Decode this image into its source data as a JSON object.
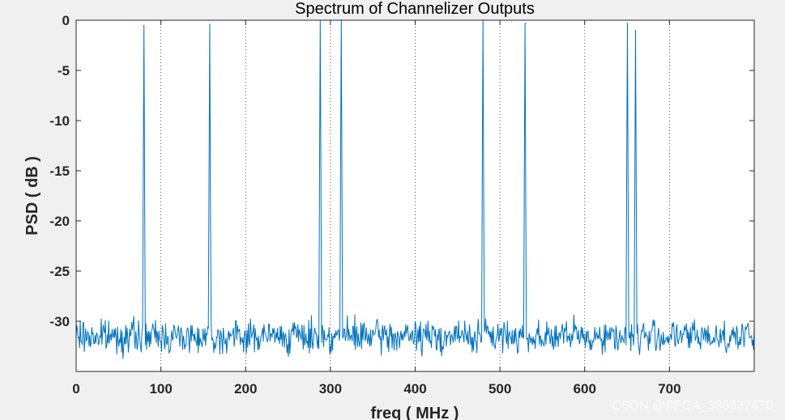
{
  "chart_data": {
    "type": "line",
    "title": "Spectrum of Channelizer Outputs",
    "xlabel": "freq ( MHz )",
    "ylabel": "PSD ( dB )",
    "xlim": [
      0,
      800
    ],
    "ylim": [
      -35,
      0
    ],
    "xticks": [
      0,
      100,
      200,
      300,
      400,
      500,
      600,
      700
    ],
    "yticks": [
      0,
      -5,
      -10,
      -15,
      -20,
      -25,
      -30
    ],
    "grid": "dotted-x-only",
    "series_color": "#0072BD",
    "noise_floor_db": -31.5,
    "noise_range_db": [
      -34.5,
      -29.2
    ],
    "peaks": [
      {
        "freq": 80,
        "psd": -0.5
      },
      {
        "freq": 158,
        "psd": -0.4
      },
      {
        "freq": 288,
        "psd": 0
      },
      {
        "freq": 313,
        "psd": 0
      },
      {
        "freq": 480,
        "psd": 0
      },
      {
        "freq": 530,
        "psd": -0.3
      },
      {
        "freq": 650,
        "psd": -0.3
      },
      {
        "freq": 660,
        "psd": -1.0
      }
    ]
  },
  "watermark": "CSDN @FPGA_385537470"
}
